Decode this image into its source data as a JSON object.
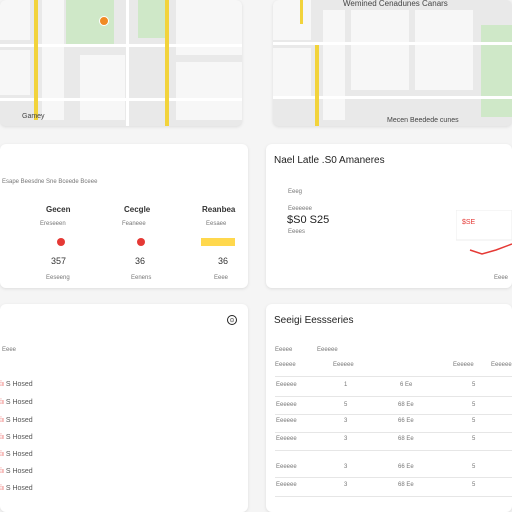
{
  "map_left": {
    "labels": [
      "Gamey"
    ]
  },
  "map_right": {
    "labels": [
      "Wemined Cenadunes Canars",
      "Mecen Beedede cunes"
    ]
  },
  "stats_card": {
    "subtitle": "Esape Beesdne Sne Bceede Bceee",
    "columns": [
      {
        "title": "Gecen",
        "sub": "Ereseeen",
        "value": "357",
        "foot": "Eeseeng"
      },
      {
        "title": "Cecgle",
        "sub": "Feaneee",
        "value": "36",
        "foot": "Eenens"
      },
      {
        "title": "Reanbea",
        "sub": "Eesaee",
        "value": "36",
        "foot": "Eeee"
      }
    ]
  },
  "latest_card": {
    "title": "Nael Latle .S0 Amaneres",
    "label1": "Eeeg",
    "label2": "Eeeeeee",
    "value": "$S0 S25",
    "label3": "Eeees",
    "chart_label": "$SE",
    "chart_foot": "Eeee"
  },
  "list_left": {
    "header": "Eeee",
    "rows": [
      "S Hosed",
      "S Hosed",
      "S Hosed",
      "S Hosed",
      "S Hosed",
      "S Hosed",
      "S Hosed"
    ]
  },
  "table_card": {
    "title": "Seeigi Eessseries",
    "col1": "Eeeee",
    "col2": "Eeeeee",
    "header_row": [
      "Eeeeee",
      "Eeeeee",
      "Eeeeee",
      "Eeeeee"
    ],
    "rows": [
      [
        "Eeeeee",
        "1",
        "6 Ee",
        "5"
      ],
      [
        "Eeeeee",
        "5",
        "68 Ee",
        "5"
      ],
      [
        "Eeeeee",
        "3",
        "66 Ee",
        "5"
      ],
      [
        "Eeeeee",
        "3",
        "68 Ee",
        "5"
      ],
      [
        "Eeeeee",
        "3",
        "66 Ee",
        "5"
      ],
      [
        "Eeeeee",
        "3",
        "68 Ee",
        "5"
      ]
    ]
  }
}
